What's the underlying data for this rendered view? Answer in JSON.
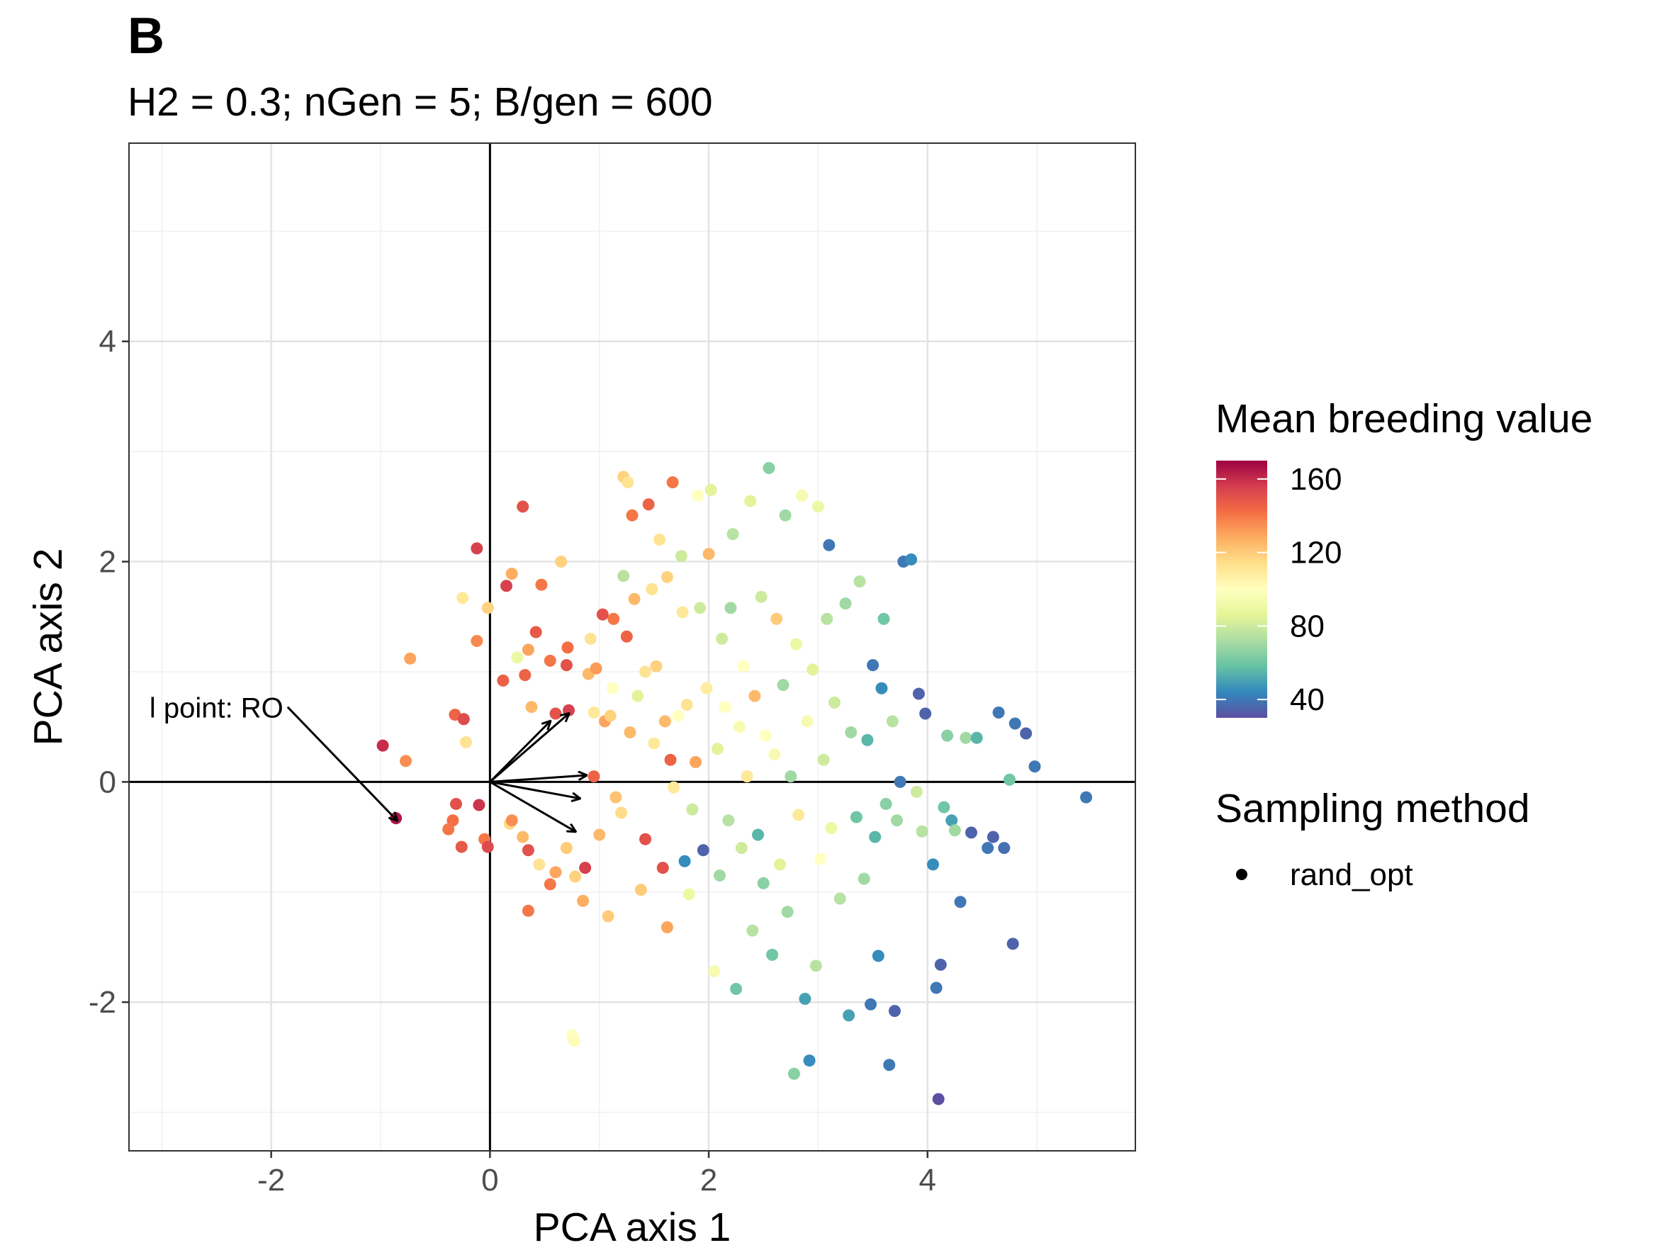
{
  "panel_tag": "B",
  "chart_data": {
    "type": "scatter",
    "title": "H2 = 0.3; nGen = 5; B/gen = 600",
    "xlabel": "PCA axis 1",
    "ylabel": "PCA axis 2",
    "xlim": [
      -3.3,
      5.9
    ],
    "ylim": [
      -3.35,
      5.8
    ],
    "x_ticks": [
      -2,
      0,
      2,
      4
    ],
    "y_ticks": [
      -2,
      0,
      2,
      4
    ],
    "x_tick_labels": [
      "-2",
      "0",
      "2",
      "4"
    ],
    "y_tick_labels": [
      "-2",
      "0",
      "2",
      "4"
    ],
    "grid": true,
    "origin_lines": true,
    "color_legend": {
      "title": "Mean breeding value",
      "palette": "Spectral (reversed)",
      "range": [
        30,
        170
      ],
      "ticks": [
        40,
        80,
        120,
        160
      ],
      "tick_labels": [
        "160",
        "120",
        "80",
        "40"
      ],
      "colors": [
        "#5E4FA2",
        "#3288BD",
        "#66C2A5",
        "#ABDDA4",
        "#E6F598",
        "#FFFFBF",
        "#FEE08B",
        "#FDAE61",
        "#F46D43",
        "#D53E4F",
        "#9E0142"
      ]
    },
    "shape_legend": {
      "title": "Sampling method",
      "entries": [
        "rand_opt"
      ]
    },
    "annotation": {
      "text": "l point: RO",
      "from": [
        -1.85,
        0.68
      ],
      "to": [
        -0.85,
        -0.35
      ],
      "highlight_point": [
        -0.86,
        -0.33
      ]
    },
    "loading_arrows": [
      {
        "x": 0.72,
        "y": 0.62
      },
      {
        "x": 0.88,
        "y": 0.06
      },
      {
        "x": 0.82,
        "y": -0.15
      },
      {
        "x": 0.78,
        "y": -0.45
      },
      {
        "x": 0.55,
        "y": 0.55
      }
    ],
    "points": [
      {
        "x": -0.98,
        "y": 0.33,
        "v": 160
      },
      {
        "x": -0.86,
        "y": -0.33,
        "v": 165
      },
      {
        "x": -0.77,
        "y": 0.19,
        "v": 135
      },
      {
        "x": -0.73,
        "y": 1.12,
        "v": 130
      },
      {
        "x": -0.32,
        "y": 0.61,
        "v": 145
      },
      {
        "x": -0.24,
        "y": 0.57,
        "v": 152
      },
      {
        "x": -0.31,
        "y": -0.2,
        "v": 150
      },
      {
        "x": -0.34,
        "y": -0.35,
        "v": 142
      },
      {
        "x": -0.38,
        "y": -0.43,
        "v": 140
      },
      {
        "x": -0.26,
        "y": -0.59,
        "v": 148
      },
      {
        "x": -0.22,
        "y": 0.36,
        "v": 112
      },
      {
        "x": -0.25,
        "y": 1.67,
        "v": 110
      },
      {
        "x": -0.12,
        "y": 2.12,
        "v": 155
      },
      {
        "x": -0.12,
        "y": 1.28,
        "v": 136
      },
      {
        "x": -0.02,
        "y": 1.58,
        "v": 118
      },
      {
        "x": -0.05,
        "y": -0.52,
        "v": 140
      },
      {
        "x": -0.02,
        "y": -0.59,
        "v": 152
      },
      {
        "x": -0.1,
        "y": -0.21,
        "v": 158
      },
      {
        "x": 0.12,
        "y": 0.92,
        "v": 146
      },
      {
        "x": 0.15,
        "y": 1.78,
        "v": 155
      },
      {
        "x": 0.2,
        "y": 1.89,
        "v": 128
      },
      {
        "x": 0.25,
        "y": 1.13,
        "v": 90
      },
      {
        "x": 0.3,
        "y": 2.5,
        "v": 150
      },
      {
        "x": 0.32,
        "y": 0.97,
        "v": 145
      },
      {
        "x": 0.35,
        "y": 1.2,
        "v": 130
      },
      {
        "x": 0.38,
        "y": 0.68,
        "v": 125
      },
      {
        "x": 0.42,
        "y": 1.36,
        "v": 148
      },
      {
        "x": 0.47,
        "y": 1.79,
        "v": 140
      },
      {
        "x": 0.55,
        "y": 1.1,
        "v": 140
      },
      {
        "x": 0.6,
        "y": 0.62,
        "v": 150
      },
      {
        "x": 0.65,
        "y": 2.0,
        "v": 118
      },
      {
        "x": 0.71,
        "y": 1.22,
        "v": 142
      },
      {
        "x": 0.72,
        "y": 0.65,
        "v": 155
      },
      {
        "x": 0.7,
        "y": 1.06,
        "v": 150
      },
      {
        "x": 0.18,
        "y": -0.38,
        "v": 115
      },
      {
        "x": 0.2,
        "y": -0.35,
        "v": 135
      },
      {
        "x": 0.3,
        "y": -0.5,
        "v": 125
      },
      {
        "x": 0.35,
        "y": -0.62,
        "v": 150
      },
      {
        "x": 0.35,
        "y": -1.17,
        "v": 140
      },
      {
        "x": 0.45,
        "y": -0.75,
        "v": 112
      },
      {
        "x": 0.55,
        "y": -0.93,
        "v": 140
      },
      {
        "x": 0.6,
        "y": -0.82,
        "v": 130
      },
      {
        "x": 0.7,
        "y": -0.6,
        "v": 120
      },
      {
        "x": 0.75,
        "y": -2.3,
        "v": 100
      },
      {
        "x": 0.77,
        "y": -2.35,
        "v": 102
      },
      {
        "x": 0.78,
        "y": -0.86,
        "v": 118
      },
      {
        "x": 0.85,
        "y": -1.08,
        "v": 128
      },
      {
        "x": 0.87,
        "y": -0.78,
        "v": 155
      },
      {
        "x": 0.9,
        "y": 0.98,
        "v": 125
      },
      {
        "x": 0.92,
        "y": 1.3,
        "v": 112
      },
      {
        "x": 0.95,
        "y": 0.63,
        "v": 110
      },
      {
        "x": 0.95,
        "y": 0.05,
        "v": 145
      },
      {
        "x": 0.97,
        "y": 1.03,
        "v": 132
      },
      {
        "x": 1.0,
        "y": -0.48,
        "v": 125
      },
      {
        "x": 1.03,
        "y": 1.52,
        "v": 150
      },
      {
        "x": 1.05,
        "y": 0.55,
        "v": 130
      },
      {
        "x": 1.08,
        "y": -1.22,
        "v": 120
      },
      {
        "x": 1.1,
        "y": 0.6,
        "v": 118
      },
      {
        "x": 1.12,
        "y": 0.85,
        "v": 100
      },
      {
        "x": 1.13,
        "y": 1.48,
        "v": 140
      },
      {
        "x": 1.15,
        "y": -0.14,
        "v": 122
      },
      {
        "x": 1.2,
        "y": -0.28,
        "v": 115
      },
      {
        "x": 1.22,
        "y": 2.77,
        "v": 118
      },
      {
        "x": 1.22,
        "y": 1.87,
        "v": 75
      },
      {
        "x": 1.25,
        "y": 1.32,
        "v": 145
      },
      {
        "x": 1.26,
        "y": 2.72,
        "v": 112
      },
      {
        "x": 1.28,
        "y": 0.45,
        "v": 125
      },
      {
        "x": 1.3,
        "y": 2.42,
        "v": 140
      },
      {
        "x": 1.32,
        "y": 1.66,
        "v": 125
      },
      {
        "x": 1.35,
        "y": 0.78,
        "v": 85
      },
      {
        "x": 1.38,
        "y": -0.98,
        "v": 120
      },
      {
        "x": 1.42,
        "y": 1.0,
        "v": 112
      },
      {
        "x": 1.42,
        "y": -0.52,
        "v": 150
      },
      {
        "x": 1.45,
        "y": 2.52,
        "v": 145
      },
      {
        "x": 1.48,
        "y": 1.75,
        "v": 112
      },
      {
        "x": 1.5,
        "y": 0.35,
        "v": 110
      },
      {
        "x": 1.52,
        "y": 1.05,
        "v": 118
      },
      {
        "x": 1.55,
        "y": 2.2,
        "v": 112
      },
      {
        "x": 1.58,
        "y": -0.78,
        "v": 150
      },
      {
        "x": 1.6,
        "y": 0.55,
        "v": 125
      },
      {
        "x": 1.62,
        "y": 1.86,
        "v": 118
      },
      {
        "x": 1.62,
        "y": -1.32,
        "v": 130
      },
      {
        "x": 1.65,
        "y": 0.2,
        "v": 145
      },
      {
        "x": 1.67,
        "y": 2.72,
        "v": 140
      },
      {
        "x": 1.68,
        "y": -0.05,
        "v": 110
      },
      {
        "x": 1.72,
        "y": 0.6,
        "v": 100
      },
      {
        "x": 1.75,
        "y": 2.05,
        "v": 80
      },
      {
        "x": 1.76,
        "y": 1.54,
        "v": 110
      },
      {
        "x": 1.78,
        "y": -0.72,
        "v": 45
      },
      {
        "x": 1.8,
        "y": 0.7,
        "v": 112
      },
      {
        "x": 1.82,
        "y": -1.02,
        "v": 90
      },
      {
        "x": 1.85,
        "y": -0.25,
        "v": 80
      },
      {
        "x": 1.88,
        "y": 0.18,
        "v": 130
      },
      {
        "x": 1.9,
        "y": 2.6,
        "v": 100
      },
      {
        "x": 1.92,
        "y": 1.58,
        "v": 80
      },
      {
        "x": 1.95,
        "y": -0.62,
        "v": 35
      },
      {
        "x": 1.98,
        "y": 0.85,
        "v": 108
      },
      {
        "x": 2.0,
        "y": 2.07,
        "v": 125
      },
      {
        "x": 2.02,
        "y": 2.65,
        "v": 85
      },
      {
        "x": 2.05,
        "y": -1.72,
        "v": 95
      },
      {
        "x": 2.08,
        "y": 0.3,
        "v": 85
      },
      {
        "x": 2.1,
        "y": -0.85,
        "v": 70
      },
      {
        "x": 2.12,
        "y": 1.3,
        "v": 80
      },
      {
        "x": 2.15,
        "y": 0.68,
        "v": 100
      },
      {
        "x": 2.18,
        "y": -0.35,
        "v": 75
      },
      {
        "x": 2.2,
        "y": 1.58,
        "v": 70
      },
      {
        "x": 2.22,
        "y": 2.25,
        "v": 75
      },
      {
        "x": 2.25,
        "y": -1.88,
        "v": 60
      },
      {
        "x": 2.28,
        "y": 0.5,
        "v": 95
      },
      {
        "x": 2.3,
        "y": -0.6,
        "v": 80
      },
      {
        "x": 2.32,
        "y": 1.05,
        "v": 100
      },
      {
        "x": 2.35,
        "y": 0.05,
        "v": 110
      },
      {
        "x": 2.38,
        "y": 2.55,
        "v": 85
      },
      {
        "x": 2.4,
        "y": -1.35,
        "v": 75
      },
      {
        "x": 2.42,
        "y": 0.78,
        "v": 125
      },
      {
        "x": 2.45,
        "y": -0.48,
        "v": 55
      },
      {
        "x": 2.48,
        "y": 1.68,
        "v": 80
      },
      {
        "x": 2.5,
        "y": -0.92,
        "v": 65
      },
      {
        "x": 2.52,
        "y": 0.42,
        "v": 100
      },
      {
        "x": 2.55,
        "y": 2.85,
        "v": 65
      },
      {
        "x": 2.58,
        "y": -1.57,
        "v": 60
      },
      {
        "x": 2.6,
        "y": 0.25,
        "v": 95
      },
      {
        "x": 2.62,
        "y": 1.48,
        "v": 120
      },
      {
        "x": 2.65,
        "y": -0.75,
        "v": 85
      },
      {
        "x": 2.68,
        "y": 0.88,
        "v": 70
      },
      {
        "x": 2.7,
        "y": 2.42,
        "v": 70
      },
      {
        "x": 2.72,
        "y": -1.18,
        "v": 70
      },
      {
        "x": 2.75,
        "y": 0.05,
        "v": 70
      },
      {
        "x": 2.78,
        "y": -2.65,
        "v": 65
      },
      {
        "x": 2.8,
        "y": 1.25,
        "v": 90
      },
      {
        "x": 2.82,
        "y": -0.3,
        "v": 110
      },
      {
        "x": 2.85,
        "y": 2.6,
        "v": 95
      },
      {
        "x": 2.88,
        "y": -1.97,
        "v": 50
      },
      {
        "x": 2.9,
        "y": 0.55,
        "v": 95
      },
      {
        "x": 2.92,
        "y": -2.53,
        "v": 45
      },
      {
        "x": 2.95,
        "y": 1.02,
        "v": 85
      },
      {
        "x": 2.98,
        "y": -1.67,
        "v": 75
      },
      {
        "x": 3.0,
        "y": 2.5,
        "v": 90
      },
      {
        "x": 3.02,
        "y": -0.7,
        "v": 100
      },
      {
        "x": 3.05,
        "y": 0.2,
        "v": 80
      },
      {
        "x": 3.08,
        "y": 1.48,
        "v": 75
      },
      {
        "x": 3.1,
        "y": 2.15,
        "v": 40
      },
      {
        "x": 3.12,
        "y": -0.42,
        "v": 90
      },
      {
        "x": 3.15,
        "y": 0.72,
        "v": 80
      },
      {
        "x": 3.2,
        "y": -1.06,
        "v": 75
      },
      {
        "x": 3.25,
        "y": 1.62,
        "v": 70
      },
      {
        "x": 3.28,
        "y": -2.12,
        "v": 50
      },
      {
        "x": 3.3,
        "y": 0.45,
        "v": 70
      },
      {
        "x": 3.35,
        "y": -0.32,
        "v": 60
      },
      {
        "x": 3.38,
        "y": 1.82,
        "v": 75
      },
      {
        "x": 3.42,
        "y": -0.88,
        "v": 70
      },
      {
        "x": 3.45,
        "y": 0.38,
        "v": 55
      },
      {
        "x": 3.48,
        "y": -2.02,
        "v": 40
      },
      {
        "x": 3.5,
        "y": 1.06,
        "v": 40
      },
      {
        "x": 3.52,
        "y": -0.5,
        "v": 55
      },
      {
        "x": 3.55,
        "y": -1.58,
        "v": 45
      },
      {
        "x": 3.58,
        "y": 0.85,
        "v": 45
      },
      {
        "x": 3.6,
        "y": 1.48,
        "v": 60
      },
      {
        "x": 3.62,
        "y": -0.2,
        "v": 65
      },
      {
        "x": 3.65,
        "y": -2.57,
        "v": 40
      },
      {
        "x": 3.68,
        "y": 0.55,
        "v": 75
      },
      {
        "x": 3.7,
        "y": -2.08,
        "v": 35
      },
      {
        "x": 3.72,
        "y": -0.35,
        "v": 70
      },
      {
        "x": 3.75,
        "y": 0.0,
        "v": 40
      },
      {
        "x": 3.78,
        "y": 2.0,
        "v": 40
      },
      {
        "x": 3.85,
        "y": 2.02,
        "v": 45
      },
      {
        "x": 3.9,
        "y": -0.09,
        "v": 80
      },
      {
        "x": 3.92,
        "y": 0.8,
        "v": 35
      },
      {
        "x": 3.95,
        "y": -0.45,
        "v": 75
      },
      {
        "x": 3.98,
        "y": 0.62,
        "v": 35
      },
      {
        "x": 4.05,
        "y": -0.75,
        "v": 45
      },
      {
        "x": 4.08,
        "y": -1.87,
        "v": 40
      },
      {
        "x": 4.1,
        "y": -2.88,
        "v": 30
      },
      {
        "x": 4.12,
        "y": -1.66,
        "v": 35
      },
      {
        "x": 4.15,
        "y": -0.23,
        "v": 60
      },
      {
        "x": 4.18,
        "y": 0.42,
        "v": 65
      },
      {
        "x": 4.22,
        "y": -0.35,
        "v": 50
      },
      {
        "x": 4.25,
        "y": -0.44,
        "v": 70
      },
      {
        "x": 4.3,
        "y": -1.09,
        "v": 40
      },
      {
        "x": 4.35,
        "y": 0.4,
        "v": 70
      },
      {
        "x": 4.4,
        "y": -0.46,
        "v": 35
      },
      {
        "x": 4.45,
        "y": 0.4,
        "v": 55
      },
      {
        "x": 4.55,
        "y": -0.6,
        "v": 40
      },
      {
        "x": 4.6,
        "y": -0.5,
        "v": 35
      },
      {
        "x": 4.65,
        "y": 0.63,
        "v": 40
      },
      {
        "x": 4.75,
        "y": 0.02,
        "v": 60
      },
      {
        "x": 4.8,
        "y": 0.53,
        "v": 40
      },
      {
        "x": 4.9,
        "y": 0.44,
        "v": 35
      },
      {
        "x": 4.98,
        "y": 0.14,
        "v": 40
      },
      {
        "x": 4.78,
        "y": -1.47,
        "v": 35
      },
      {
        "x": 5.45,
        "y": -0.14,
        "v": 40
      },
      {
        "x": 4.7,
        "y": -0.6,
        "v": 38
      }
    ]
  }
}
